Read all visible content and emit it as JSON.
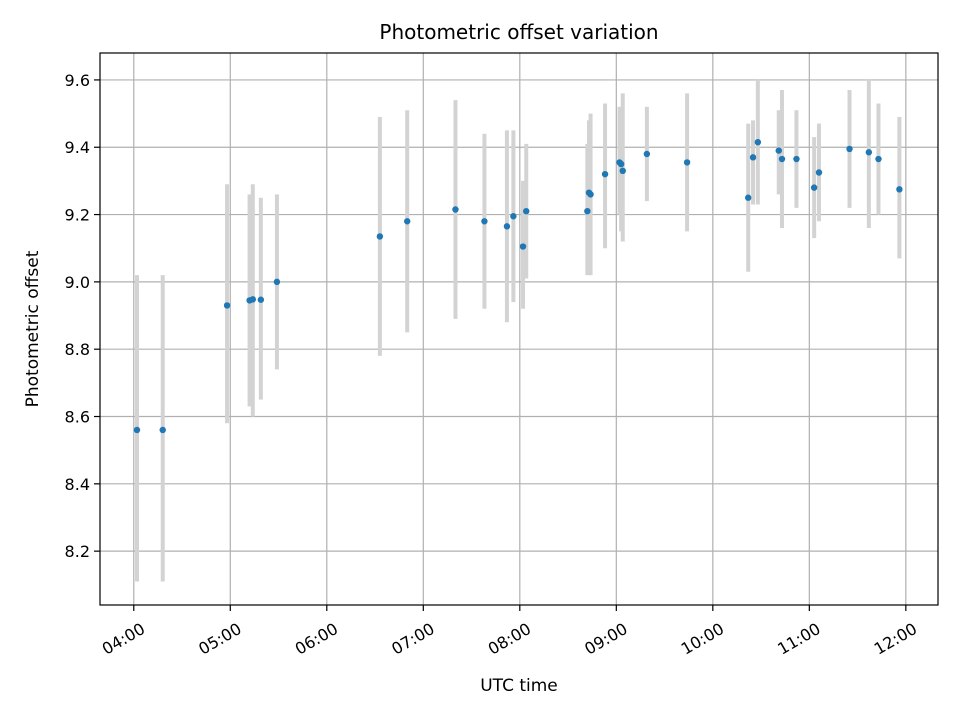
{
  "chart_data": {
    "type": "scatter",
    "title": "Photometric offset variation",
    "xlabel": "UTC time",
    "ylabel": "Photometric offset",
    "x_tick_labels": [
      "04:00",
      "05:00",
      "06:00",
      "07:00",
      "08:00",
      "09:00",
      "10:00",
      "11:00",
      "12:00"
    ],
    "y_tick_labels": [
      "8.2",
      "8.4",
      "8.6",
      "8.8",
      "9.0",
      "9.2",
      "9.4",
      "9.6"
    ],
    "xlim": [
      "03:39",
      "12:20"
    ],
    "ylim": [
      8.04,
      9.68
    ],
    "grid": true,
    "marker_color": "#1f77b4",
    "errorbar_color": "#d3d3d3",
    "points": [
      {
        "t": "04:02",
        "y": 8.56,
        "lo": 8.11,
        "hi": 9.02
      },
      {
        "t": "04:18",
        "y": 8.56,
        "lo": 8.11,
        "hi": 9.02
      },
      {
        "t": "04:58",
        "y": 8.93,
        "lo": 8.58,
        "hi": 9.29
      },
      {
        "t": "05:12",
        "y": 8.945,
        "lo": 8.63,
        "hi": 9.26
      },
      {
        "t": "05:14",
        "y": 8.948,
        "lo": 8.6,
        "hi": 9.29
      },
      {
        "t": "05:19",
        "y": 8.947,
        "lo": 8.65,
        "hi": 9.25
      },
      {
        "t": "05:29",
        "y": 9.0,
        "lo": 8.74,
        "hi": 9.26
      },
      {
        "t": "06:33",
        "y": 9.135,
        "lo": 8.78,
        "hi": 9.49
      },
      {
        "t": "06:50",
        "y": 9.18,
        "lo": 8.85,
        "hi": 9.51
      },
      {
        "t": "07:20",
        "y": 9.215,
        "lo": 8.89,
        "hi": 9.54
      },
      {
        "t": "07:38",
        "y": 9.18,
        "lo": 8.92,
        "hi": 9.44
      },
      {
        "t": "07:52",
        "y": 9.165,
        "lo": 8.88,
        "hi": 9.45
      },
      {
        "t": "07:56",
        "y": 9.195,
        "lo": 8.94,
        "hi": 9.45
      },
      {
        "t": "08:02",
        "y": 9.105,
        "lo": 8.92,
        "hi": 9.3
      },
      {
        "t": "08:04",
        "y": 9.21,
        "lo": 9.01,
        "hi": 9.41
      },
      {
        "t": "08:42",
        "y": 9.21,
        "lo": 9.02,
        "hi": 9.41
      },
      {
        "t": "08:43",
        "y": 9.265,
        "lo": 9.02,
        "hi": 9.48
      },
      {
        "t": "08:44",
        "y": 9.26,
        "lo": 9.02,
        "hi": 9.5
      },
      {
        "t": "08:53",
        "y": 9.32,
        "lo": 9.1,
        "hi": 9.53
      },
      {
        "t": "09:02",
        "y": 9.355,
        "lo": 9.2,
        "hi": 9.52
      },
      {
        "t": "09:03",
        "y": 9.35,
        "lo": 9.15,
        "hi": 9.52
      },
      {
        "t": "09:04",
        "y": 9.33,
        "lo": 9.12,
        "hi": 9.56
      },
      {
        "t": "09:19",
        "y": 9.38,
        "lo": 9.24,
        "hi": 9.52
      },
      {
        "t": "09:44",
        "y": 9.355,
        "lo": 9.15,
        "hi": 9.56
      },
      {
        "t": "10:22",
        "y": 9.25,
        "lo": 9.03,
        "hi": 9.47
      },
      {
        "t": "10:25",
        "y": 9.37,
        "lo": 9.23,
        "hi": 9.48
      },
      {
        "t": "10:28",
        "y": 9.415,
        "lo": 9.23,
        "hi": 9.6
      },
      {
        "t": "10:41",
        "y": 9.39,
        "lo": 9.26,
        "hi": 9.51
      },
      {
        "t": "10:43",
        "y": 9.365,
        "lo": 9.16,
        "hi": 9.57
      },
      {
        "t": "10:52",
        "y": 9.365,
        "lo": 9.22,
        "hi": 9.51
      },
      {
        "t": "11:03",
        "y": 9.28,
        "lo": 9.13,
        "hi": 9.43
      },
      {
        "t": "11:06",
        "y": 9.325,
        "lo": 9.18,
        "hi": 9.47
      },
      {
        "t": "11:25",
        "y": 9.395,
        "lo": 9.22,
        "hi": 9.57
      },
      {
        "t": "11:37",
        "y": 9.385,
        "lo": 9.16,
        "hi": 9.6
      },
      {
        "t": "11:43",
        "y": 9.365,
        "lo": 9.2,
        "hi": 9.53
      },
      {
        "t": "11:56",
        "y": 9.275,
        "lo": 9.07,
        "hi": 9.49
      }
    ]
  }
}
